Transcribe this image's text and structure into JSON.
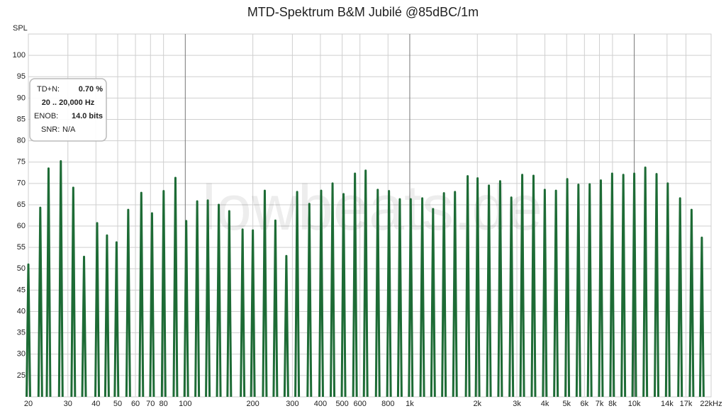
{
  "chart_data": {
    "type": "stem",
    "title": "MTD-Spektrum B&M Jubilé @85dBC/1m",
    "y_label": "SPL",
    "watermark": "lowbeats.de",
    "color": "#1d6b35",
    "log_x": true,
    "grid": true,
    "info": {
      "tdn_label": "TD+N:",
      "tdn_value": "0.70 %",
      "range": "20 .. 20,000 Hz",
      "enob_label": "ENOB:",
      "enob_value": "14.0 bits",
      "snr_label": "SNR:",
      "snr_value": "N/A"
    },
    "xlim": [
      20,
      22000
    ],
    "ylim": [
      20,
      105
    ],
    "yticks": [
      25,
      30,
      35,
      40,
      45,
      50,
      55,
      60,
      65,
      70,
      75,
      80,
      85,
      90,
      95,
      100
    ],
    "xticks": [
      20,
      30,
      40,
      50,
      60,
      70,
      80,
      100,
      200,
      300,
      400,
      500,
      600,
      800,
      {
        "value": 1000,
        "label": "1k"
      },
      {
        "value": 2000,
        "label": "2k"
      },
      {
        "value": 3000,
        "label": "3k"
      },
      {
        "value": 4000,
        "label": "4k"
      },
      {
        "value": 5000,
        "label": "5k"
      },
      {
        "value": 6000,
        "label": "6k"
      },
      {
        "value": 7000,
        "label": "7k"
      },
      {
        "value": 8000,
        "label": "8k"
      },
      {
        "value": 10000,
        "label": "10k"
      },
      {
        "value": 14000,
        "label": "14k"
      },
      {
        "value": 17000,
        "label": "17k"
      },
      {
        "value": 22000,
        "label": "22kHz"
      }
    ],
    "x": [
      20,
      22.6,
      24.6,
      27.9,
      31.7,
      35.4,
      40.5,
      44.8,
      49.4,
      55.7,
      63.7,
      71.1,
      80.1,
      90.4,
      101,
      113,
      126,
      141,
      157,
      180,
      200,
      226,
      252,
      282,
      315,
      357,
      403,
      453,
      507,
      570,
      636,
      720,
      808,
      903,
      1010,
      1137,
      1270,
      1420,
      1590,
      1811,
      2005,
      2252,
      2527,
      2834,
      3170,
      3558,
      3994,
      4480,
      5030,
      5640,
      6330,
      7100,
      7970,
      8940,
      10000,
      11200,
      12570,
      14100,
      16000,
      18000,
      20000
    ],
    "values": [
      51,
      64.3,
      73.5,
      75.2,
      69,
      52.8,
      60.7,
      57.8,
      56.2,
      63.8,
      67.8,
      63,
      68.2,
      71.3,
      61.2,
      65.8,
      66,
      65,
      63.5,
      59.2,
      59,
      68.3,
      61.3,
      53,
      68,
      65.2,
      68.3,
      70,
      67.5,
      72.3,
      73,
      68.5,
      68.2,
      66.3,
      66.3,
      66.5,
      64,
      67.7,
      68,
      71.7,
      71.2,
      69.5,
      70.5,
      66.7,
      72,
      71.8,
      68.5,
      68.3,
      71,
      69.7,
      69.8,
      70.7,
      72.3,
      72,
      72.3,
      73.7,
      72.2,
      70,
      66.5,
      63.8,
      57.3
    ]
  }
}
